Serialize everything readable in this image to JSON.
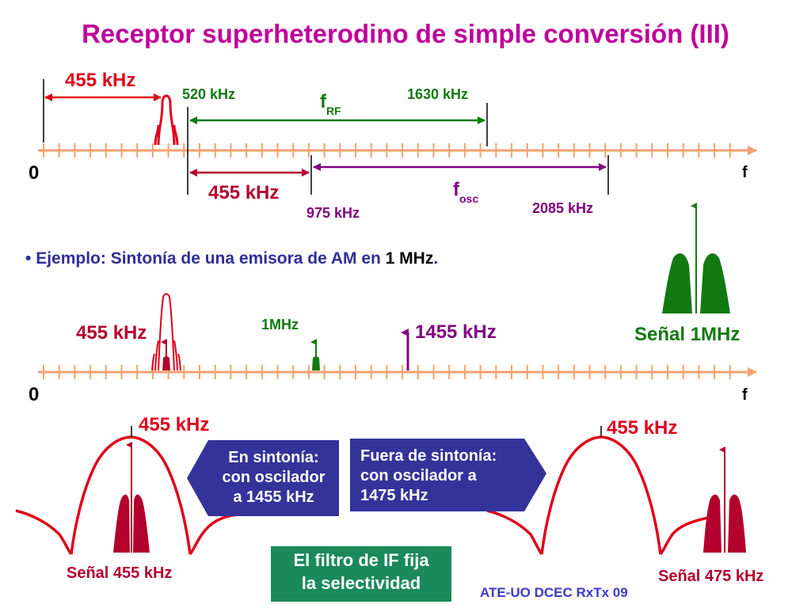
{
  "title": "Receptor superheterodino de simple conversión (III)",
  "colors": {
    "title": "#c0009a",
    "axis": "#f4a070",
    "red": "#e0001b",
    "dark_red": "#b3002d",
    "green": "#117a11",
    "purple": "#800080",
    "box_dark": "#33339a",
    "box_green": "#1a8a5a"
  },
  "top_diagram": {
    "if_label": "455 kHz",
    "rf_low_label": "520 kHz",
    "rf_high_label": "1630 kHz",
    "frf_label": "f",
    "frf_sub": "RF",
    "if_label_2": "455 kHz",
    "osc_low_label": "975 kHz",
    "osc_high_label": "2085 kHz",
    "fosc_label": "f",
    "fosc_sub": "osc",
    "origin": "0",
    "axis_label": "f"
  },
  "example": {
    "bullet": "•",
    "text": "Ejemplo: Sintonía de una emisora de AM en ",
    "value": "1 MHz",
    "end": "."
  },
  "middle_diagram": {
    "if_label": "455 kHz",
    "rf_label": "1MHz",
    "osc_label": "1455 kHz",
    "origin": "0",
    "axis_label": "f",
    "signal_label": "Señal 1MHz"
  },
  "bottom": {
    "left_if_label": "455 kHz",
    "right_if_label": "455 kHz",
    "left_signal_label": "Señal 455 kHz",
    "right_signal_label": "Señal 475 kHz",
    "box_left_lines": [
      "En sintonía:",
      "con oscilador",
      "a 1455 kHz"
    ],
    "box_right_lines": [
      "Fuera de sintonía:",
      "con oscilador a",
      "1475 kHz"
    ],
    "box_center_lines": [
      "El filtro de IF fija",
      "la selectividad"
    ]
  },
  "footer": "ATE-UO DCEC RxTx 09"
}
